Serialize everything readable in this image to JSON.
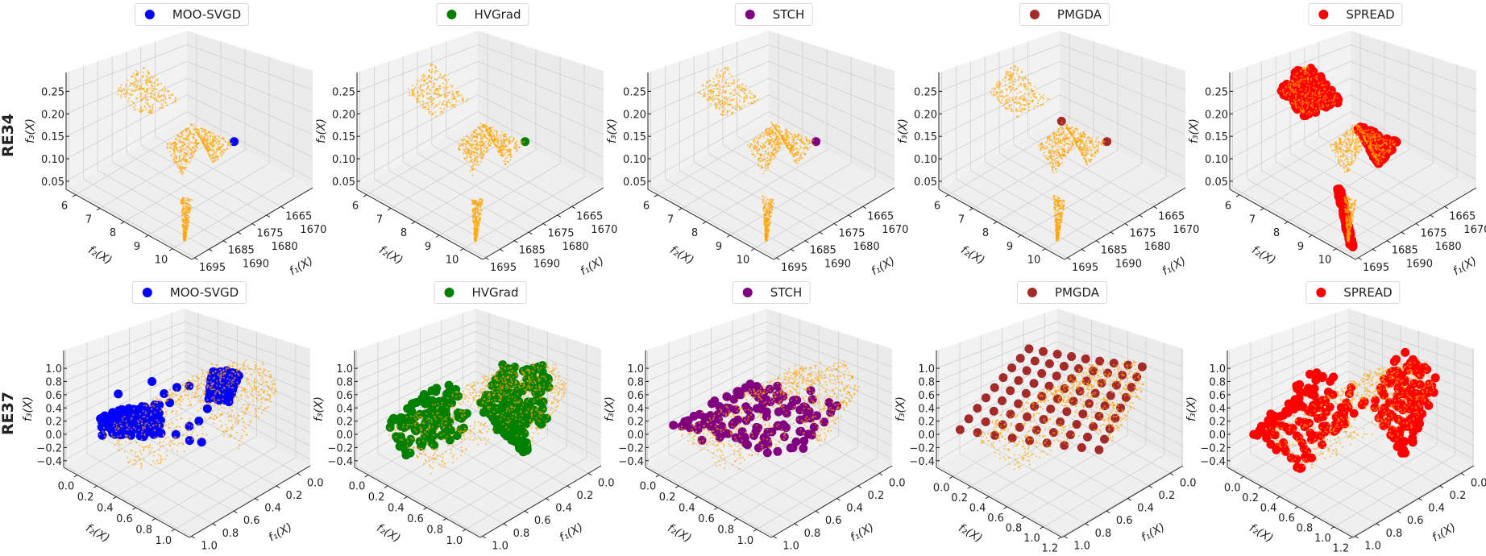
{
  "chart_data": [
    {
      "type": "scatter3d",
      "row_label": "RE34",
      "axes": {
        "f1": {
          "label": "f₁(X)",
          "range": [
            1654,
            1696
          ],
          "ticks": [
            "1665",
            "1670",
            "1675",
            "1680",
            "1685",
            "1690",
            "1695"
          ]
        },
        "f2": {
          "label": "f₂(X)",
          "range": [
            5.6,
            10.8
          ],
          "ticks": [
            "6",
            "7",
            "8",
            "9",
            "10"
          ]
        },
        "f3": {
          "label": "f₃(X)",
          "range": [
            0.032,
            0.292
          ],
          "ticks": [
            "0.05",
            "0.10",
            "0.15",
            "0.20",
            "0.25"
          ]
        },
        "grid": true
      },
      "reference_front": {
        "color": "#ffa500",
        "patches": [
          [
            [
              1686.8,
              6.54,
              0.253
            ],
            [
              1675.0,
              6.22,
              0.279
            ],
            [
              1676.7,
              7.94,
              0.24
            ],
            [
              1685.1,
              7.47,
              0.214
            ]
          ],
          [
            [
              1681.0,
              7.92,
              0.149
            ],
            [
              1670.5,
              7.64,
              0.149
            ],
            [
              1674.4,
              8.63,
              0.149
            ],
            [
              1688.2,
              9.46,
              0.149
            ]
          ],
          [
            [
              1670.5,
              7.64,
              0.157
            ],
            [
              1669.5,
              9.4,
              0.157
            ],
            [
              1680.7,
              9.92,
              0.157
            ],
            [
              1674.4,
              8.63,
              0.157
            ]
          ],
          [
            [
              1683.8,
              8.88,
              0.071
            ],
            [
              1683.0,
              9.29,
              0.071
            ],
            [
              1695.4,
              10.46,
              0.06
            ],
            [
              1695.5,
              10.4,
              0.06
            ]
          ]
        ]
      },
      "panels": [
        {
          "legend": "MOO-SVGD",
          "color": "#0000ff",
          "points": [
            [
              1669.5,
              9.4,
              0.157
            ]
          ]
        },
        {
          "legend": "HVGrad",
          "color": "#008000",
          "points": [
            [
              1669.5,
              9.4,
              0.157
            ]
          ]
        },
        {
          "legend": "STCH",
          "color": "#800080",
          "points": [
            [
              1669.5,
              9.4,
              0.157
            ]
          ]
        },
        {
          "legend": "PMGDA",
          "color": "#a52a2a",
          "points": [
            [
              1669.5,
              9.4,
              0.157
            ],
            [
              1670.5,
              7.64,
              0.16
            ]
          ]
        },
        {
          "legend": "SPREAD",
          "color": "#ff0000",
          "patches": [
            [
              [
                1686.8,
                6.54,
                0.253
              ],
              [
                1675.0,
                6.22,
                0.285
              ],
              [
                1676.7,
                7.94,
                0.24
              ],
              [
                1685.1,
                7.47,
                0.214
              ]
            ],
            [
              [
                1670.5,
                7.64,
                0.157
              ],
              [
                1669.5,
                9.4,
                0.157
              ],
              [
                1680.7,
                9.92,
                0.157
              ],
              [
                1674.4,
                8.63,
                0.157
              ]
            ],
            [
              [
                1684.0,
                8.6,
                0.08
              ],
              [
                1683.5,
                8.7,
                0.08
              ],
              [
                1695.0,
                10.6,
                0.05
              ],
              [
                1695.3,
                10.5,
                0.05
              ]
            ]
          ]
        }
      ]
    },
    {
      "type": "scatter3d",
      "row_label": "RE37",
      "axes": {
        "f1": {
          "label": "f₁(X)",
          "range": [
            -0.12,
            1.02
          ],
          "ticks": [
            "0.0",
            "0.2",
            "0.4",
            "0.6",
            "0.8",
            "1.0"
          ]
        },
        "f2": {
          "label": "f₂(X)",
          "range": [
            -0.14,
            1.15
          ],
          "ticks": [
            "0.0",
            "0.2",
            "0.4",
            "0.6",
            "0.8",
            "1.0"
          ]
        },
        "f3": {
          "label": "f₃(X)",
          "range": [
            -0.5,
            1.27
          ],
          "ticks": [
            "−0.4",
            "−0.2",
            "0.0",
            "0.2",
            "0.4",
            "0.6",
            "0.8",
            "1.0"
          ]
        },
        "grid": true
      },
      "reference_front": {
        "color": "#ffa500",
        "patches": [
          [
            [
              0.85,
              0.0,
              0.03
            ],
            [
              0.26,
              0.0,
              0.03
            ],
            [
              0.35,
              0.64,
              0.03
            ],
            [
              0.99,
              0.63,
              0.03
            ]
          ],
          [
            [
              0.45,
              0.59,
              0.51
            ],
            [
              0.0,
              0.82,
              1.0
            ],
            [
              0.0,
              0.95,
              0.65
            ],
            [
              0.33,
              0.91,
              0.03
            ]
          ],
          [
            [
              0.26,
              0.0,
              0.03
            ],
            [
              0.0,
              0.3,
              0.6
            ],
            [
              0.0,
              0.82,
              1.0
            ],
            [
              0.45,
              0.59,
              0.51
            ]
          ]
        ]
      },
      "panels": [
        {
          "legend": "MOO-SVGD",
          "color": "#0000ff",
          "patches": [
            [
              [
                0.81,
                0.0,
                0.27
              ],
              [
                0.43,
                0.21,
                0.27
              ],
              [
                0.71,
                0.55,
                0.27
              ],
              [
                1.0,
                0.22,
                0.27
              ]
            ],
            [
              [
                0.21,
                0.5,
                0.83
              ],
              [
                0.1,
                0.67,
                0.83
              ],
              [
                0.42,
                0.92,
                0.83
              ],
              [
                0.5,
                0.77,
                0.83
              ]
            ]
          ],
          "points": [
            [
              0.49,
              0.19,
              0.67
            ],
            [
              0.43,
              0.38,
              0.67
            ],
            [
              0.36,
              0.43,
              0.67
            ],
            [
              0.55,
              0.38,
              0.67
            ],
            [
              0.68,
              0.05,
              0.51
            ],
            [
              0.47,
              0.35,
              0.43
            ],
            [
              0.37,
              0.54,
              0.19
            ],
            [
              0.46,
              0.54,
              0.19
            ],
            [
              0.55,
              0.5,
              0.11
            ],
            [
              0.54,
              0.63,
              0.11
            ],
            [
              0.5,
              0.71,
              0.11
            ],
            [
              0.4,
              0.66,
              0.51
            ]
          ]
        },
        {
          "legend": "HVGrad",
          "color": "#008000",
          "patches": [
            [
              [
                0.85,
                0.0,
                0.2
              ],
              [
                0.3,
                0.05,
                0.45
              ],
              [
                0.5,
                0.55,
                0.2
              ],
              [
                1.0,
                0.35,
                0.0
              ]
            ],
            [
              [
                0.2,
                0.45,
                0.9
              ],
              [
                0.0,
                0.75,
                0.95
              ],
              [
                0.2,
                0.95,
                0.3
              ],
              [
                0.5,
                0.75,
                0.3
              ]
            ],
            [
              [
                0.45,
                0.5,
                0.45
              ],
              [
                0.2,
                0.5,
                0.9
              ],
              [
                0.35,
                0.92,
                0.02
              ],
              [
                0.4,
                0.92,
                0.02
              ]
            ]
          ]
        },
        {
          "legend": "STCH",
          "color": "#800080",
          "patches": [
            [
              [
                0.9,
                0.0,
                0.15
              ],
              [
                0.3,
                0.15,
                0.5
              ],
              [
                0.05,
                0.9,
                0.55
              ],
              [
                0.55,
                0.85,
                0.05
              ]
            ]
          ],
          "points": [
            [
              0.6,
              0.45,
              -0.05
            ],
            [
              0.5,
              0.55,
              -0.05
            ],
            [
              0.55,
              0.6,
              -0.1
            ],
            [
              0.35,
              0.75,
              -0.1
            ],
            [
              0.8,
              0.2,
              0.0
            ]
          ]
        },
        {
          "legend": "PMGDA",
          "color": "#a52a2a",
          "sampling": "grid",
          "axes": {
            "f2": {
              "range": [
                -0.18,
                1.21
              ],
              "ticks": [
                "0.0",
                "0.2",
                "0.4",
                "0.6",
                "0.8",
                "1.0",
                "1.2"
              ]
            }
          },
          "patches": [
            [
              [
                0.95,
                0.0,
                0.15
              ],
              [
                0.3,
                0.0,
                0.95
              ],
              [
                0.0,
                0.9,
                0.95
              ],
              [
                0.45,
                0.95,
                0.1
              ]
            ]
          ]
        },
        {
          "legend": "SPREAD",
          "color": "#ff0000",
          "axes": {
            "f2": {
              "range": [
                -0.18,
                1.21
              ],
              "ticks": [
                "0.0",
                "0.2",
                "0.4",
                "0.6",
                "0.8",
                "1.0",
                "1.2"
              ]
            }
          },
          "patches": [
            [
              [
                0.95,
                0.0,
                0.1
              ],
              [
                0.35,
                0.05,
                0.75
              ],
              [
                0.35,
                0.6,
                0.55
              ],
              [
                0.95,
                0.55,
                -0.05
              ]
            ],
            [
              [
                0.35,
                0.6,
                0.45
              ],
              [
                0.0,
                0.55,
                1.05
              ],
              [
                0.0,
                1.0,
                0.8
              ],
              [
                0.35,
                1.0,
                -0.1
              ]
            ]
          ]
        }
      ]
    }
  ]
}
